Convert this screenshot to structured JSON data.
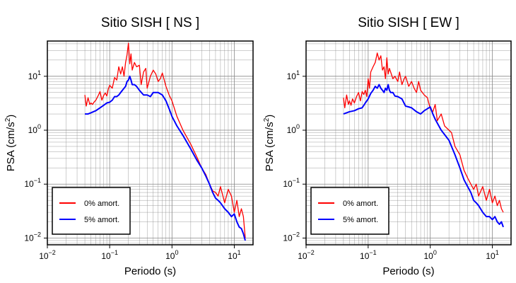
{
  "chart_data": [
    {
      "type": "line",
      "title": "Sitio SISH [ NS ]",
      "xlabel": "Periodo (s)",
      "ylabel": "PSA (cm/s",
      "ylabel_exp": "2",
      "ylabel_close": ")",
      "xscale": "log",
      "yscale": "log",
      "xlim": [
        0.01,
        20
      ],
      "ylim": [
        0.0075,
        45
      ],
      "grid": true,
      "legend_position": "bottom-left",
      "x_ticks": [
        {
          "base": "10",
          "exp": "−2"
        },
        {
          "base": "10",
          "exp": "−1"
        },
        {
          "base": "10",
          "exp": "0"
        },
        {
          "base": "10",
          "exp": "1"
        }
      ],
      "y_ticks": [
        {
          "base": "10",
          "exp": "−2"
        },
        {
          "base": "10",
          "exp": "−1"
        },
        {
          "base": "10",
          "exp": "0"
        },
        {
          "base": "10",
          "exp": "1"
        }
      ],
      "series": [
        {
          "name": "0% amort.",
          "color": "#ff0000",
          "x": [
            0.04,
            0.042,
            0.045,
            0.048,
            0.05,
            0.053,
            0.056,
            0.06,
            0.065,
            0.07,
            0.075,
            0.08,
            0.085,
            0.09,
            0.095,
            0.1,
            0.11,
            0.12,
            0.13,
            0.14,
            0.15,
            0.16,
            0.17,
            0.18,
            0.19,
            0.2,
            0.21,
            0.22,
            0.23,
            0.25,
            0.27,
            0.3,
            0.32,
            0.35,
            0.38,
            0.4,
            0.45,
            0.5,
            0.55,
            0.6,
            0.65,
            0.7,
            0.8,
            0.9,
            1.0,
            1.2,
            1.5,
            2.0,
            2.5,
            3.0,
            3.5,
            4.0,
            4.5,
            5.0,
            5.5,
            6.0,
            7.0,
            8.0,
            9.0,
            10.0,
            11.0,
            12.0,
            13.0,
            14.0,
            15.0
          ],
          "y": [
            4.5,
            2.8,
            4.0,
            3.0,
            3.2,
            3.0,
            3.3,
            3.6,
            4.3,
            5.2,
            3.6,
            4.4,
            4.9,
            4.3,
            5.8,
            6.8,
            6.0,
            9.5,
            8.5,
            15.0,
            11.0,
            15.0,
            10.0,
            18.0,
            25.0,
            41.0,
            17.0,
            26.0,
            13.0,
            18.0,
            15.0,
            16.0,
            7.0,
            12.0,
            14.0,
            6.0,
            10.0,
            13.0,
            11.0,
            8.0,
            9.0,
            11.5,
            6.5,
            4.5,
            3.5,
            1.8,
            1.0,
            0.55,
            0.32,
            0.2,
            0.15,
            0.1,
            0.075,
            0.07,
            0.06,
            0.09,
            0.045,
            0.08,
            0.06,
            0.03,
            0.05,
            0.025,
            0.035,
            0.025,
            0.01
          ]
        },
        {
          "name": "5% amort.",
          "color": "#0000ff",
          "x": [
            0.04,
            0.045,
            0.05,
            0.06,
            0.07,
            0.08,
            0.09,
            0.1,
            0.11,
            0.12,
            0.13,
            0.14,
            0.15,
            0.16,
            0.17,
            0.18,
            0.19,
            0.2,
            0.21,
            0.22,
            0.23,
            0.25,
            0.27,
            0.3,
            0.35,
            0.4,
            0.45,
            0.5,
            0.6,
            0.7,
            0.8,
            0.9,
            1.0,
            1.2,
            1.5,
            2.0,
            2.5,
            3.0,
            3.5,
            4.0,
            4.5,
            5.0,
            5.5,
            6.0,
            7.0,
            8.0,
            9.0,
            10.0,
            11.0,
            12.0,
            13.0,
            14.0,
            15.0
          ],
          "y": [
            2.0,
            2.0,
            2.1,
            2.3,
            2.6,
            2.9,
            3.2,
            3.3,
            3.6,
            4.2,
            4.2,
            4.5,
            5.0,
            5.5,
            6.0,
            6.5,
            8.0,
            8.5,
            10.0,
            8.5,
            7.0,
            7.0,
            6.5,
            5.5,
            4.5,
            4.5,
            4.2,
            5.0,
            5.0,
            4.5,
            3.5,
            2.5,
            1.8,
            1.2,
            0.8,
            0.45,
            0.28,
            0.2,
            0.14,
            0.1,
            0.07,
            0.055,
            0.05,
            0.045,
            0.035,
            0.03,
            0.025,
            0.028,
            0.02,
            0.016,
            0.015,
            0.012,
            0.009
          ]
        }
      ]
    },
    {
      "type": "line",
      "title": "Sitio SISH [ EW ]",
      "xlabel": "Periodo (s)",
      "ylabel": "PSA (cm/s",
      "ylabel_exp": "2",
      "ylabel_close": ")",
      "xscale": "log",
      "yscale": "log",
      "xlim": [
        0.01,
        20
      ],
      "ylim": [
        0.0075,
        45
      ],
      "grid": true,
      "legend_position": "bottom-left",
      "x_ticks": [
        {
          "base": "10",
          "exp": "−2"
        },
        {
          "base": "10",
          "exp": "−1"
        },
        {
          "base": "10",
          "exp": "0"
        },
        {
          "base": "10",
          "exp": "1"
        }
      ],
      "y_ticks": [
        {
          "base": "10",
          "exp": "−2"
        },
        {
          "base": "10",
          "exp": "−1"
        },
        {
          "base": "10",
          "exp": "0"
        },
        {
          "base": "10",
          "exp": "1"
        }
      ],
      "series": [
        {
          "name": "0% amort.",
          "color": "#ff0000",
          "x": [
            0.04,
            0.042,
            0.045,
            0.048,
            0.05,
            0.053,
            0.056,
            0.06,
            0.065,
            0.07,
            0.075,
            0.08,
            0.085,
            0.09,
            0.095,
            0.1,
            0.105,
            0.11,
            0.12,
            0.13,
            0.14,
            0.15,
            0.16,
            0.17,
            0.18,
            0.19,
            0.2,
            0.21,
            0.22,
            0.23,
            0.25,
            0.27,
            0.3,
            0.32,
            0.35,
            0.38,
            0.4,
            0.45,
            0.5,
            0.55,
            0.6,
            0.65,
            0.7,
            0.8,
            0.9,
            1.0,
            1.1,
            1.2,
            1.3,
            1.5,
            1.7,
            2.0,
            2.2,
            2.5,
            3.0,
            3.5,
            4.0,
            4.5,
            5.0,
            5.5,
            6.0,
            7.0,
            8.0,
            9.0,
            10.0,
            11.0,
            12.0,
            13.0,
            14.0,
            15.0
          ],
          "y": [
            4.0,
            2.6,
            4.5,
            3.0,
            3.5,
            2.9,
            3.8,
            3.2,
            4.2,
            5.0,
            3.5,
            5.2,
            4.6,
            5.5,
            4.2,
            9.0,
            6.0,
            12.0,
            15.0,
            18.0,
            27.0,
            20.0,
            24.0,
            13.0,
            15.0,
            9.0,
            22.0,
            11.0,
            14.0,
            12.0,
            9.0,
            10.0,
            8.0,
            12.0,
            7.0,
            9.0,
            10.0,
            6.5,
            8.0,
            6.0,
            5.0,
            8.0,
            5.5,
            4.5,
            4.0,
            2.5,
            2.2,
            3.0,
            1.5,
            2.0,
            1.2,
            1.0,
            0.9,
            0.5,
            0.35,
            0.18,
            0.13,
            0.1,
            0.08,
            0.1,
            0.06,
            0.09,
            0.05,
            0.08,
            0.045,
            0.06,
            0.04,
            0.05,
            0.035,
            0.03
          ]
        },
        {
          "name": "5% amort.",
          "color": "#0000ff",
          "x": [
            0.04,
            0.045,
            0.05,
            0.06,
            0.07,
            0.08,
            0.09,
            0.1,
            0.11,
            0.12,
            0.13,
            0.14,
            0.15,
            0.16,
            0.17,
            0.18,
            0.19,
            0.2,
            0.21,
            0.22,
            0.23,
            0.25,
            0.27,
            0.3,
            0.35,
            0.4,
            0.45,
            0.5,
            0.6,
            0.7,
            0.8,
            0.9,
            1.0,
            1.1,
            1.2,
            1.5,
            2.0,
            2.5,
            3.0,
            3.5,
            4.0,
            4.5,
            5.0,
            5.5,
            6.0,
            7.0,
            8.0,
            9.0,
            10.0,
            11.0,
            12.0,
            13.0,
            14.0,
            15.0
          ],
          "y": [
            2.0,
            2.1,
            2.2,
            2.3,
            2.5,
            2.6,
            3.2,
            3.8,
            4.8,
            5.5,
            6.5,
            6.0,
            7.0,
            6.0,
            5.5,
            5.0,
            6.0,
            5.5,
            7.0,
            5.5,
            5.0,
            5.0,
            4.3,
            4.2,
            3.8,
            2.8,
            2.7,
            2.6,
            2.2,
            2.0,
            2.3,
            2.5,
            2.7,
            2.0,
            1.6,
            1.0,
            0.65,
            0.35,
            0.2,
            0.12,
            0.09,
            0.07,
            0.05,
            0.045,
            0.04,
            0.03,
            0.025,
            0.025,
            0.022,
            0.025,
            0.02,
            0.018,
            0.02,
            0.016
          ]
        }
      ]
    }
  ]
}
